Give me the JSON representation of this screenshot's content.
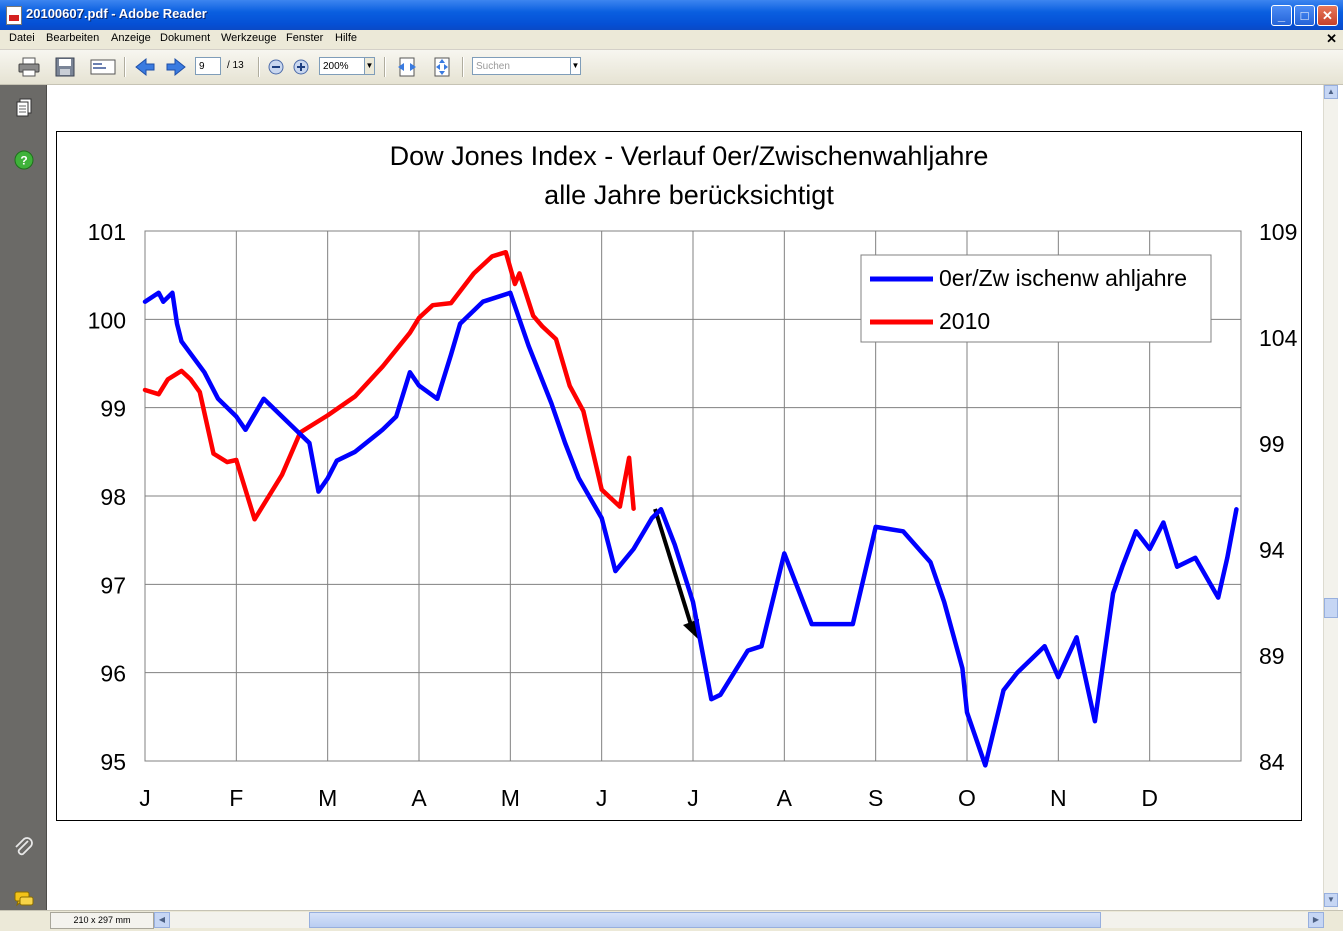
{
  "window": {
    "title": "20100607.pdf - Adobe Reader"
  },
  "menu": [
    "Datei",
    "Bearbeiten",
    "Anzeige",
    "Dokument",
    "Werkzeuge",
    "Fenster",
    "Hilfe"
  ],
  "toolbar": {
    "page_current": "9",
    "page_total": "/ 13",
    "zoom": "200%",
    "search_placeholder": "Suchen"
  },
  "status": {
    "page_size": "210 x 297 mm"
  },
  "icons": [
    "print-icon",
    "save-icon",
    "email-icon",
    "prev-page-icon",
    "next-page-icon",
    "zoom-out-icon",
    "zoom-in-icon",
    "fit-width-icon",
    "fit-page-icon",
    "pages-icon",
    "help-icon",
    "attachment-icon",
    "comments-icon"
  ],
  "chart_data": {
    "type": "line",
    "title": "Dow Jones Index - Verlauf 0er/Zwischenwahljahre",
    "subtitle": "alle Jahre berücksichtigt",
    "categories": [
      "J",
      "F",
      "M",
      "A",
      "M",
      "J",
      "J",
      "A",
      "S",
      "O",
      "N",
      "D"
    ],
    "y_left": {
      "ticks": [
        "101",
        "100",
        "99",
        "98",
        "97",
        "96",
        "95"
      ],
      "range": [
        95,
        101
      ]
    },
    "y_right": {
      "ticks": [
        "109",
        "104",
        "99",
        "94",
        "89",
        "84"
      ],
      "range": [
        84,
        109
      ]
    },
    "grid": true,
    "legend_position": "top-right",
    "series": [
      {
        "name": "0er/Zw ischenw ahljahre",
        "axis": "left",
        "color": "#0000ff",
        "x": [
          0,
          0.15,
          0.2,
          0.3,
          0.35,
          0.4,
          0.65,
          0.8,
          1.0,
          1.1,
          1.3,
          1.5,
          1.8,
          1.9,
          2.0,
          2.1,
          2.3,
          2.6,
          2.75,
          2.9,
          3.0,
          3.2,
          3.35,
          3.45,
          3.7,
          4.0,
          4.2,
          4.45,
          4.6,
          4.75,
          5.0,
          5.15,
          5.35,
          5.55,
          5.65,
          5.8,
          6.0,
          6.2,
          6.3,
          6.6,
          6.75,
          7.0,
          7.3,
          7.55,
          7.75,
          8.0,
          8.3,
          8.6,
          8.75,
          8.95,
          9.0,
          9.2,
          9.4,
          9.55,
          9.85,
          10.0,
          10.2,
          10.4,
          10.6,
          10.7,
          10.85,
          11.0,
          11.15,
          11.3,
          11.5,
          11.75,
          11.85,
          11.95
        ],
        "y": [
          100.2,
          100.3,
          100.2,
          100.3,
          99.95,
          99.75,
          99.4,
          99.1,
          98.9,
          98.75,
          99.1,
          98.9,
          98.6,
          98.05,
          98.2,
          98.4,
          98.5,
          98.75,
          98.9,
          99.4,
          99.25,
          99.1,
          99.6,
          99.95,
          100.2,
          100.3,
          99.7,
          99.05,
          98.6,
          98.2,
          97.75,
          97.15,
          97.4,
          97.75,
          97.85,
          97.45,
          96.8,
          95.7,
          95.75,
          96.25,
          96.3,
          97.35,
          96.55,
          96.55,
          96.55,
          97.65,
          97.6,
          97.25,
          96.8,
          96.05,
          95.55,
          94.95,
          95.8,
          96.0,
          96.3,
          95.95,
          96.4,
          95.45,
          96.9,
          97.2,
          97.6,
          97.4,
          97.7,
          97.2,
          97.3,
          96.85,
          97.3,
          97.85
        ]
      },
      {
        "name": "2010",
        "axis": "right",
        "color": "#ff0000",
        "x": [
          0,
          0.15,
          0.25,
          0.4,
          0.5,
          0.6,
          0.75,
          0.9,
          1.0,
          1.2,
          1.5,
          1.7,
          2.0,
          2.3,
          2.6,
          2.9,
          3.0,
          3.15,
          3.35,
          3.6,
          3.8,
          3.95,
          4.05,
          4.1,
          4.25,
          4.35,
          4.5,
          4.65,
          4.8,
          5.0,
          5.2,
          5.3,
          5.35
        ],
        "y": [
          101.5,
          101.3,
          102.0,
          102.4,
          102.0,
          101.4,
          98.5,
          98.1,
          98.2,
          95.4,
          97.5,
          99.5,
          100.3,
          101.2,
          102.6,
          104.2,
          104.9,
          105.5,
          105.6,
          107.0,
          107.8,
          108.0,
          106.5,
          107.0,
          105.0,
          104.5,
          103.9,
          101.7,
          100.5,
          96.8,
          96.0,
          98.3,
          95.9
        ]
      }
    ]
  }
}
